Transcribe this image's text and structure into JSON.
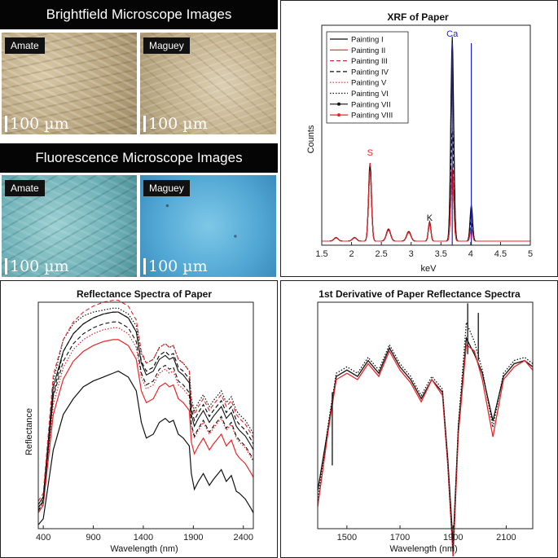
{
  "left_top": {
    "brightfield_title": "Brightfield Microscope Images",
    "fluorescence_title": "Fluorescence Microscope Images",
    "labels": {
      "amate": "Amate",
      "maguey": "Maguey"
    },
    "scale_bar": "100 µm"
  },
  "colors": {
    "black": "#111111",
    "red": "#e8262a",
    "blue": "#2222cc"
  },
  "chart_data": [
    {
      "type": "line",
      "title": "XRF of Paper",
      "xlabel": "keV",
      "ylabel": "Counts",
      "xlim": [
        1.5,
        5
      ],
      "xticks": [
        "1.5",
        "2",
        "2.5",
        "3",
        "3.5",
        "4",
        "4.5",
        "5"
      ],
      "legend": [
        "Painting I",
        "Painting II",
        "Painting III",
        "Painting IV",
        "Painting V",
        "Painting VI",
        "Painting VII",
        "Painting VIII"
      ],
      "legend_position": "top-left",
      "element_lines": [
        {
          "label": "S",
          "kev": 2.31,
          "color": "red"
        },
        {
          "label": "K",
          "kev": 3.31,
          "color": "black"
        },
        {
          "label": "Ca",
          "kev": 3.69,
          "color": "blue"
        },
        {
          "label": "",
          "kev": 4.01,
          "color": "blue"
        }
      ]
    },
    {
      "type": "line",
      "title": "Reflectance Spectra of Paper",
      "xlabel": "Wavelength (nm)",
      "ylabel": "Reflectance",
      "xlim": [
        350,
        2500
      ],
      "xticks": [
        "400",
        "900",
        "1400",
        "1900",
        "2400"
      ],
      "x": [
        350,
        400,
        500,
        600,
        700,
        800,
        900,
        1000,
        1100,
        1150,
        1250,
        1330,
        1380,
        1430,
        1500,
        1560,
        1620,
        1660,
        1700,
        1750,
        1800,
        1860,
        1880,
        1910,
        1950,
        2000,
        2060,
        2100,
        2180,
        2230,
        2280,
        2330,
        2360,
        2420,
        2480,
        2500
      ],
      "series": [
        {
          "name": "Painting I",
          "style": "solid-black",
          "values": [
            2,
            5,
            40,
            58,
            66,
            72,
            75,
            77,
            79,
            80,
            77,
            70,
            54,
            46,
            48,
            54,
            56,
            54,
            55,
            48,
            46,
            42,
            28,
            20,
            24,
            28,
            22,
            25,
            30,
            24,
            27,
            19,
            18,
            15,
            10,
            8
          ]
        },
        {
          "name": "Painting II",
          "style": "solid-red",
          "values": [
            8,
            12,
            58,
            76,
            85,
            90,
            93,
            95,
            96,
            96,
            93,
            86,
            70,
            64,
            66,
            72,
            74,
            72,
            73,
            66,
            64,
            60,
            44,
            38,
            42,
            46,
            40,
            43,
            48,
            42,
            45,
            38,
            36,
            33,
            28,
            26
          ]
        },
        {
          "name": "Painting V",
          "style": "dotted-red",
          "values": [
            9,
            13,
            63,
            82,
            91,
            96,
            99,
            101,
            102,
            102,
            99,
            92,
            77,
            71,
            73,
            79,
            81,
            79,
            80,
            73,
            71,
            67,
            52,
            46,
            50,
            54,
            48,
            51,
            56,
            50,
            53,
            46,
            44,
            41,
            36,
            34
          ]
        },
        {
          "name": "Painting VI",
          "style": "dotted-black",
          "values": [
            10,
            15,
            75,
            96,
            104,
            108,
            110,
            111,
            112,
            112,
            109,
            103,
            89,
            84,
            86,
            92,
            94,
            92,
            93,
            86,
            84,
            80,
            66,
            60,
            64,
            68,
            62,
            65,
            70,
            64,
            67,
            60,
            58,
            55,
            50,
            48
          ]
        },
        {
          "name": "Painting IV",
          "style": "dashed-black",
          "values": [
            9,
            14,
            68,
            90,
            99,
            104,
            107,
            109,
            110,
            110,
            107,
            100,
            85,
            80,
            82,
            88,
            90,
            88,
            89,
            82,
            80,
            76,
            61,
            55,
            59,
            63,
            57,
            60,
            65,
            59,
            62,
            55,
            53,
            50,
            45,
            43
          ]
        }
      ]
    },
    {
      "type": "line",
      "title": "1st Derivative of Paper Reflectance Spectra",
      "xlabel": "Wavelength (nm)",
      "ylabel": "",
      "xlim": [
        1390,
        2200
      ],
      "xticks": [
        "1500",
        "1700",
        "1900",
        "2100"
      ],
      "x": [
        1390,
        1410,
        1430,
        1460,
        1500,
        1540,
        1580,
        1620,
        1660,
        1700,
        1740,
        1780,
        1820,
        1860,
        1880,
        1900,
        1920,
        1950,
        1980,
        2010,
        2050,
        2090,
        2130,
        2170,
        2200
      ],
      "series": [
        {
          "name": "Painting I",
          "style": "solid-black",
          "values": [
            -3.5,
            -2.5,
            -1.5,
            0.1,
            0.3,
            0.1,
            0.6,
            0.2,
            1.0,
            0.4,
            0.0,
            -0.6,
            0.0,
            -0.4,
            -2.5,
            -5.2,
            -1.5,
            1.3,
            0.8,
            0.2,
            -1.3,
            0.1,
            0.5,
            0.6,
            0.4
          ]
        },
        {
          "name": "Painting II",
          "style": "solid-red",
          "values": [
            -4.0,
            -2.8,
            -1.6,
            0.0,
            0.2,
            0.0,
            0.5,
            0.1,
            0.9,
            0.3,
            -0.1,
            -0.7,
            0.0,
            -0.5,
            -2.7,
            -5.6,
            -1.7,
            1.1,
            0.9,
            0.0,
            -1.8,
            0.0,
            0.4,
            0.6,
            0.3
          ]
        },
        {
          "name": "Painting VI",
          "style": "dotted-black",
          "values": [
            -3.8,
            -2.6,
            -1.4,
            0.2,
            0.4,
            0.2,
            0.7,
            0.3,
            1.1,
            0.5,
            0.1,
            -0.5,
            0.1,
            -0.3,
            -2.6,
            -5.4,
            -1.4,
            1.8,
            1.2,
            0.3,
            -1.5,
            0.2,
            0.6,
            0.7,
            0.5
          ]
        }
      ]
    }
  ]
}
